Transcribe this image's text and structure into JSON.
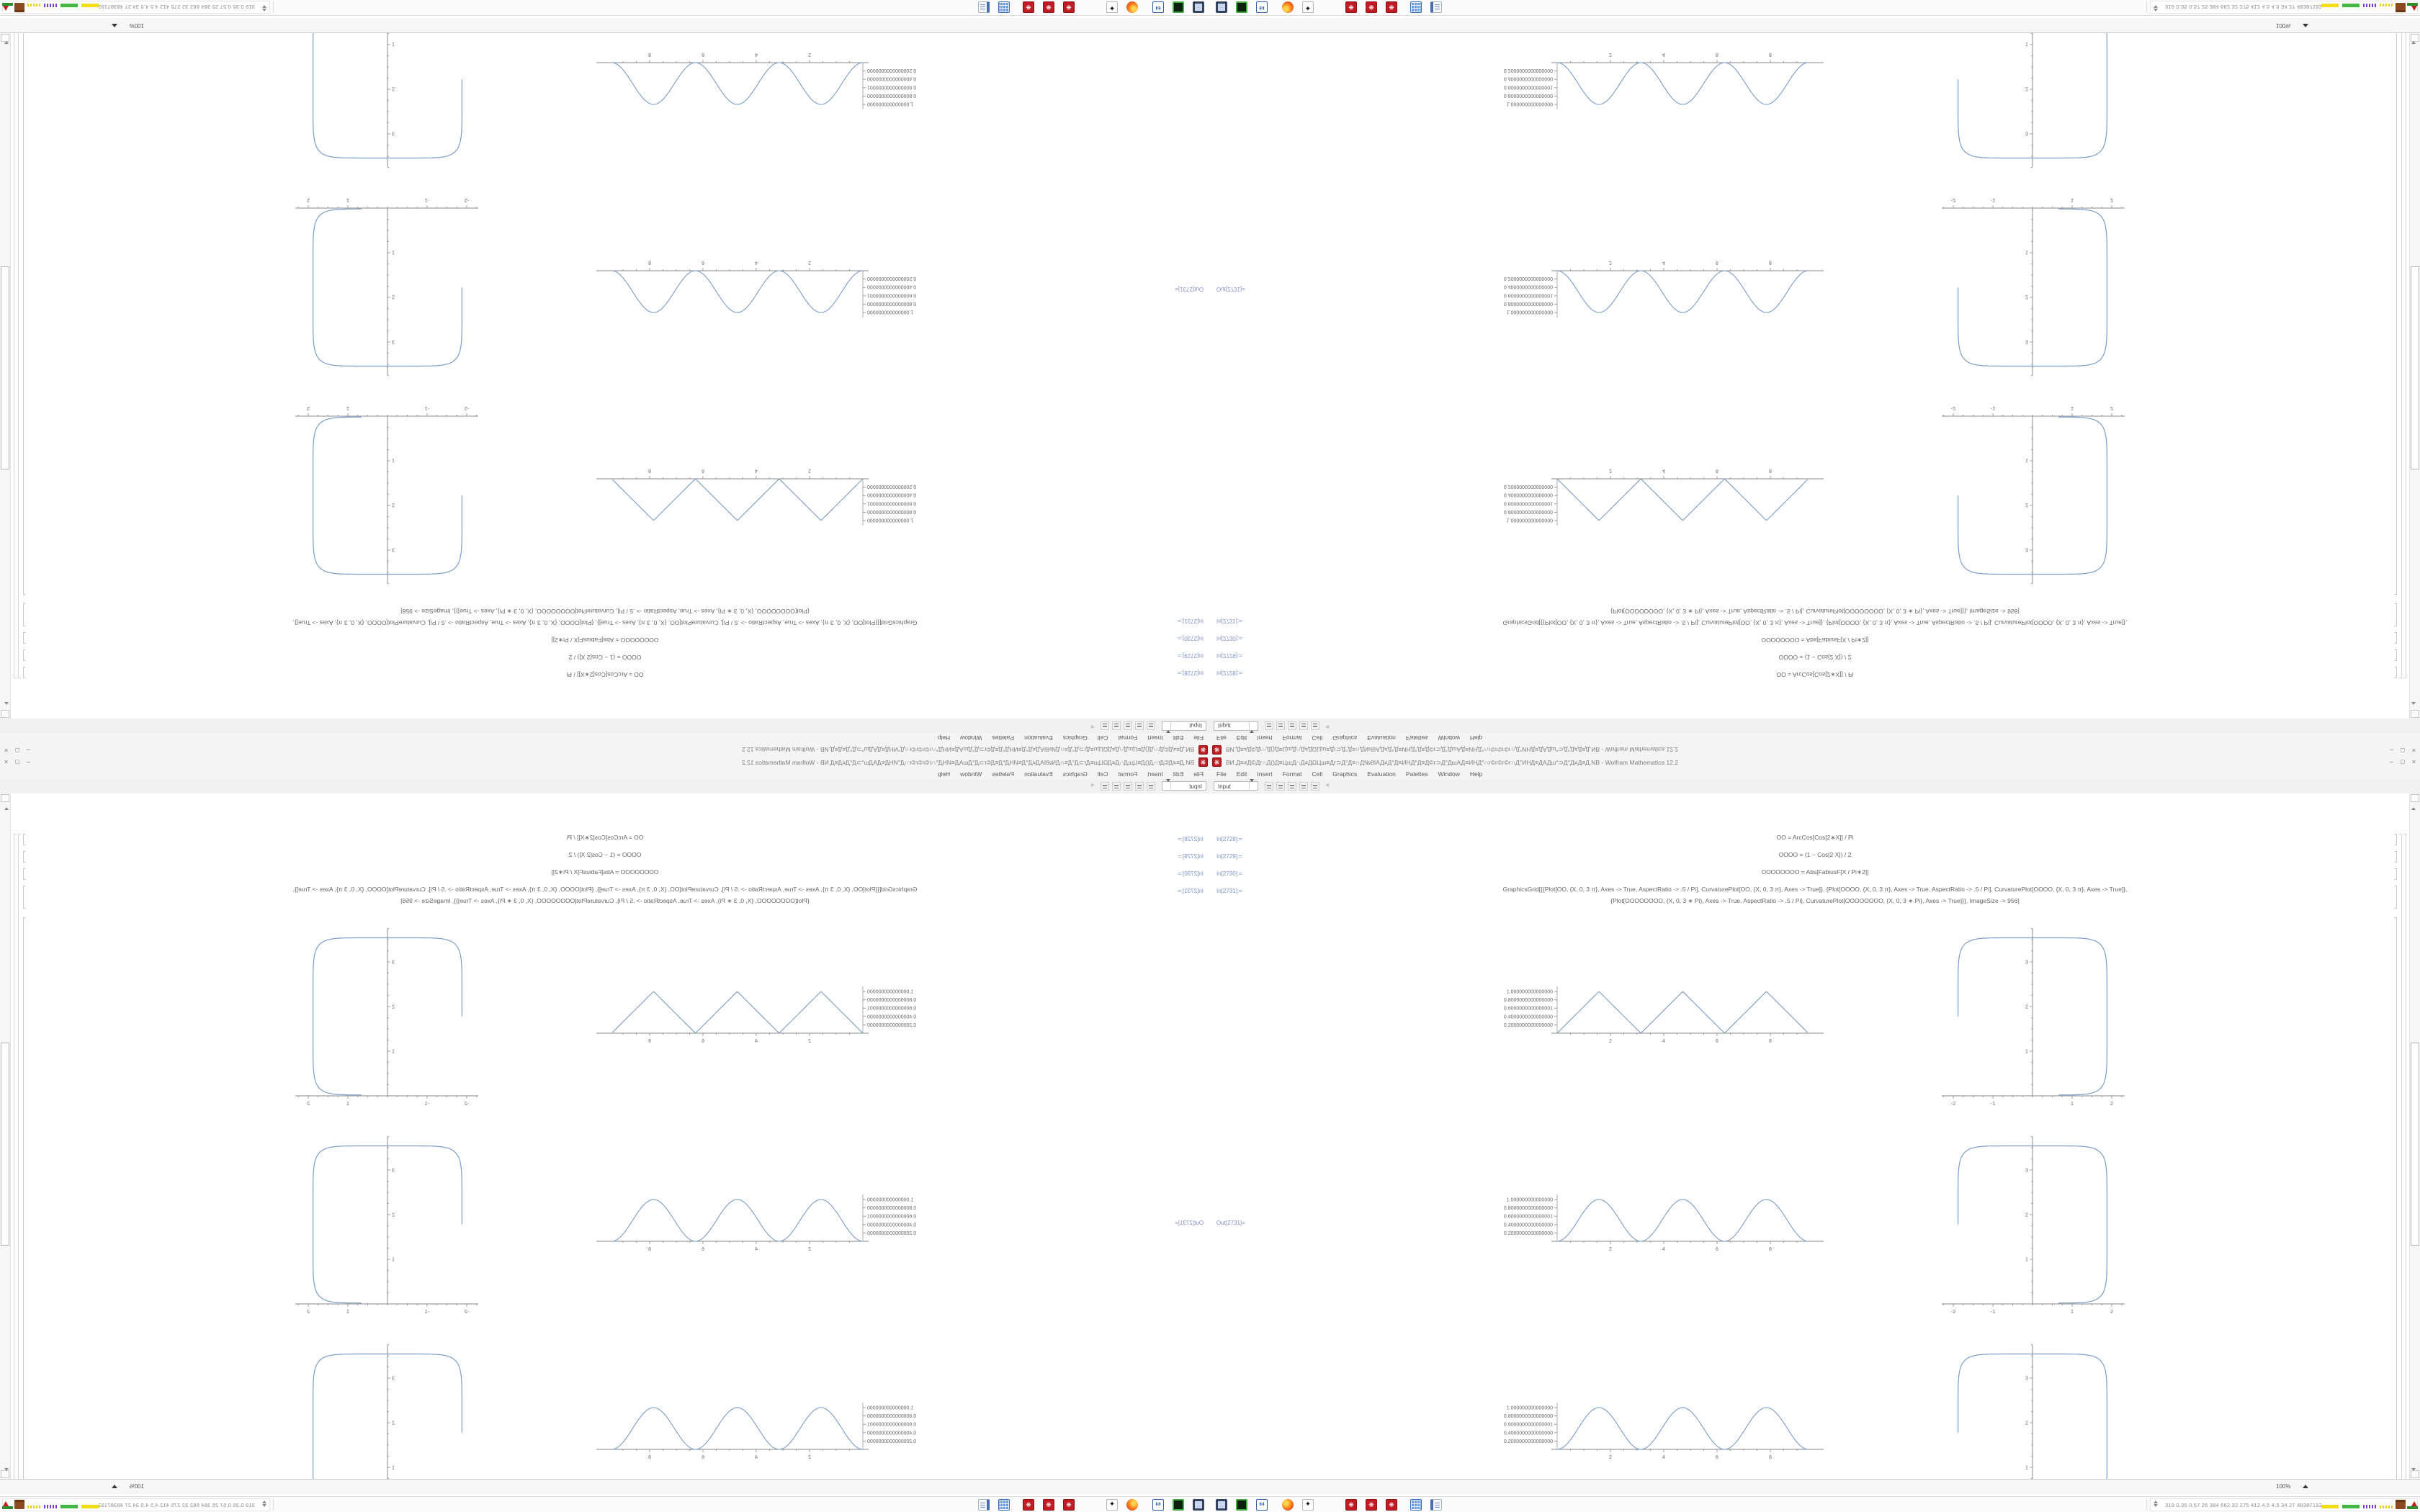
{
  "app": {
    "title": "ВИ.Д≡≠Д©Дг∩Д()Д≡ЦшД∩Д≠ДΩЦш≡Дг⊃Д°Д≡∩Д№8ΙАД≠Д°Д≡ИНД°Д≡Д©г⊃Д°ДшАД≡ИНД°∩г©г©г©г∩Д°ИНД≡ДАДш°⊃Д°Д≠Д≡Д.NB - Wolfram Mathematica 12.2",
    "menu": [
      "File",
      "Edit",
      "Insert",
      "Format",
      "Cell",
      "Graphics",
      "Evaluation",
      "Palettes",
      "Window",
      "Help"
    ],
    "toolbar": {
      "cell_style": "Input"
    },
    "window_controls": {
      "minimize": "–",
      "restore": "□",
      "close": "×"
    }
  },
  "icons": {
    "spikey": "❋",
    "inkscape": "✦",
    "vbox_label": "64",
    "back_chevron": "◂"
  },
  "cells": [
    {
      "label": "In[2728]:=",
      "code": "OO = ArcCos[Cos[2∗X]] / Pi"
    },
    {
      "label": "In[2729]:=",
      "code": "OOOO = (1 − Cos[2 X]) / 2"
    },
    {
      "label": "In[2730]:=",
      "code": "OOOOOOOO = Abs[FabiusF[X / Pi∗2]]"
    },
    {
      "label": "In[2731]:=",
      "code_line1": "GraphicsGrid[{{Plot[OO, {X, 0, 3 π}, Axes -> True, AspectRatio -> .5 / Pi], CurvaturePlot[OO, {X, 0, 3 π}, Axes -> True]}, {Plot[OOOO, {X, 0, 3 π}, Axes -> True, AspectRatio -> .5 / Pi], CurvaturePlot[OOOO, {X, 0, 3 π}, Axes -> True]},",
      "code_line2": "{Plot[OOOOOOOO, {X, 0, 3 ∗ Pi}, Axes -> True, AspectRatio -> .5 / Pi], CurvaturePlot[OOOOOOOO, {X, 0, 3 ∗ Pi}, Axes -> True]}}, ImageSize -> 956]"
    }
  ],
  "output_label": "Out[2731]=",
  "chart_data": [
    {
      "type": "line",
      "name": "Plot OO = ArcCos[Cos[2 X]]/Pi (triangle wave)",
      "shape": "triangle",
      "xlim": [
        0,
        9.42
      ],
      "ylim": [
        0,
        1
      ],
      "x_ticks": [
        2,
        4,
        6,
        8
      ],
      "y_tick_labels": [
        "1.000000000000000",
        "0.8000000000000000",
        "0.6000000000000001",
        "0.4000000000000000",
        "0.2000000000000000"
      ],
      "peaks_x": [
        1.57,
        4.71,
        7.85
      ],
      "zeros_x": [
        0,
        3.14,
        6.28,
        9.42
      ],
      "curve_color": "#7b9cc7"
    },
    {
      "type": "line",
      "name": "Plot OOOO = (1 - Cos[2 X])/2 (sin^2 bumps)",
      "shape": "sin2",
      "xlim": [
        0,
        9.42
      ],
      "ylim": [
        0,
        1
      ],
      "x_ticks": [
        2,
        4,
        6,
        8
      ],
      "y_tick_labels": [
        "1.000000000000000",
        "0.8000000000000000",
        "0.6000000000000001",
        "0.4000000000000000",
        "0.2000000000000000"
      ],
      "peaks_x": [
        1.57,
        4.71,
        7.85
      ],
      "zeros_x": [
        0,
        3.14,
        6.28,
        9.42
      ],
      "curve_color": "#7b9cc7"
    },
    {
      "type": "line",
      "name": "Plot OOOOOOOO = Abs[FabiusF[X/Pi*2]] (smooth bumps)",
      "shape": "sin2",
      "xlim": [
        0,
        9.42
      ],
      "ylim": [
        0,
        1
      ],
      "x_ticks": [
        2,
        4,
        6,
        8
      ],
      "y_tick_labels": [
        "1.000000000000000",
        "0.8000000000000000",
        "0.6000000000000001",
        "0.4000000000000000",
        "0.2000000000000000"
      ],
      "peaks_x": [
        1.57,
        4.71,
        7.85
      ],
      "zeros_x": [
        0,
        3.14,
        6.28,
        9.42
      ],
      "curve_color": "#7b9cc7"
    },
    {
      "type": "line",
      "name": "CurvaturePlot (rounded-square open curve)",
      "shape": "superellipse",
      "x_ticks": [
        -2,
        -1,
        1,
        2
      ],
      "y_ticks": [
        1,
        2,
        3
      ],
      "xlim": [
        -2.3,
        2.3
      ],
      "ylim": [
        0,
        3.8
      ],
      "top_y": 3.54,
      "half_width": 1.88,
      "center_y": 1.78,
      "curve_color": "#7b9cc7"
    }
  ],
  "statusbar": {
    "zoom_level": "100%"
  },
  "taskbar": {
    "icons": [
      "display",
      "terminal",
      "virtualbox",
      "firefox",
      "inkscape",
      "mathematica",
      "mathematica",
      "mathematica",
      "calculator",
      "text-editor"
    ],
    "tray_values": "319 0.35 0.57 25 384 662 32 275 412 4.5 4.5 34 27 48387192"
  }
}
